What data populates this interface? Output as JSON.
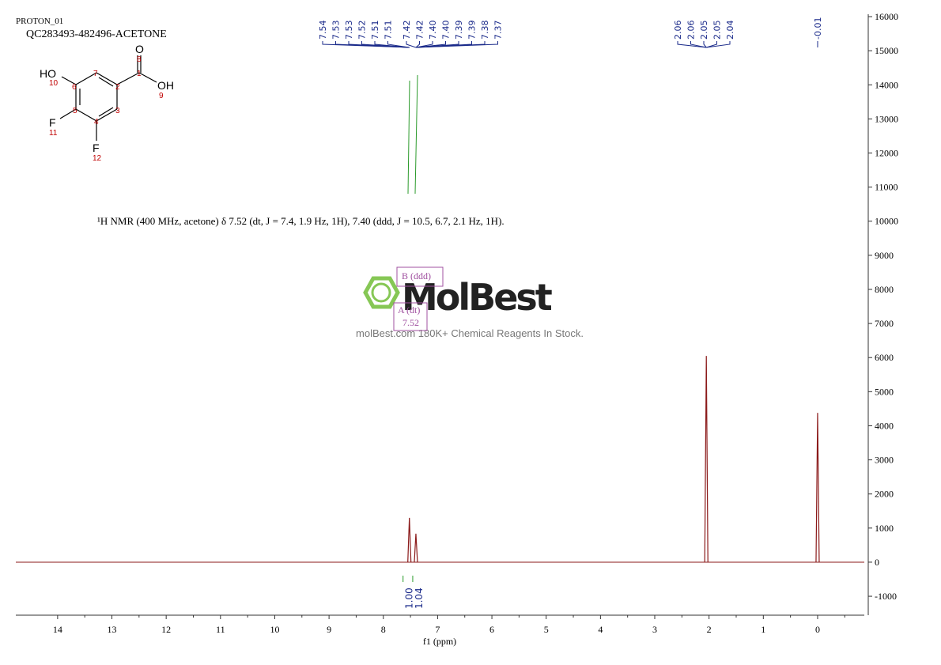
{
  "header": {
    "experiment": "PROTON_01",
    "sample": "QC283493-482496-ACETONE"
  },
  "structure": {
    "atoms": [
      "O",
      "HO",
      "OH",
      "F",
      "F"
    ],
    "atom_numbers": [
      "1",
      "2",
      "3",
      "4",
      "5",
      "6",
      "7",
      "8",
      "9",
      "10",
      "11",
      "12"
    ]
  },
  "description": "¹H NMR (400 MHz, acetone) δ 7.52 (dt, J = 7.4, 1.9 Hz, 1H), 7.40 (ddd, J = 10.5, 6.7, 2.1 Hz, 1H).",
  "multiplets": [
    "B (ddd)",
    "A (dt)",
    "7.52"
  ],
  "watermark": {
    "brand": "MolBest",
    "tagline": "molBest.com 180K+ Chemical Reagents In Stock."
  },
  "chart_data": {
    "type": "nmr",
    "x_label": "f1 (ppm)",
    "xlim": [
      14.77,
      -0.86
    ],
    "xticks": [
      14,
      13,
      12,
      11,
      10,
      9,
      8,
      7,
      6,
      5,
      4,
      3,
      2,
      1,
      0
    ],
    "ylim": [
      -1555,
      16070
    ],
    "yticks": [
      -1000,
      0,
      1000,
      2000,
      3000,
      4000,
      5000,
      6000,
      7000,
      8000,
      9000,
      10000,
      11000,
      12000,
      13000,
      14000,
      15000,
      16000
    ],
    "color": "#8b1a1a",
    "peaks": {
      "x": [
        7.52,
        7.4,
        2.05,
        0.0
      ],
      "values": [
        1300,
        835,
        6050,
        4380
      ]
    },
    "peak_labels": [
      [
        "7.54",
        "7.53",
        "7.53",
        "7.52",
        "7.51",
        "7.51"
      ],
      [
        "7.42",
        "7.42",
        "7.40",
        "7.40",
        "7.39",
        "7.39",
        "7.38",
        "7.37"
      ],
      [
        "2.06",
        "2.06",
        "2.05",
        "2.05",
        "2.04"
      ],
      [
        "-0.01"
      ]
    ],
    "integral_labels": [
      "1.00",
      "1.04"
    ]
  }
}
